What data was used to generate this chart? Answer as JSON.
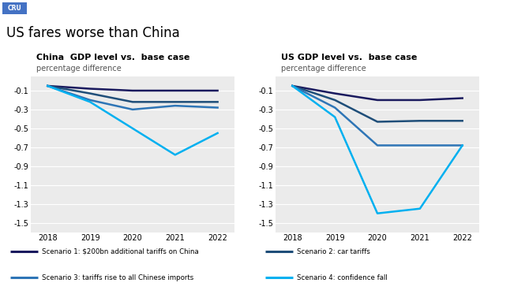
{
  "title": "US fares worse than China",
  "years": [
    2018,
    2019,
    2020,
    2021,
    2022
  ],
  "china_s1": [
    -0.05,
    -0.08,
    -0.1,
    -0.1,
    -0.1
  ],
  "china_s2": [
    -0.05,
    -0.13,
    -0.22,
    -0.22,
    -0.22
  ],
  "china_s3": [
    -0.05,
    -0.2,
    -0.3,
    -0.26,
    -0.28
  ],
  "china_s4": [
    -0.05,
    -0.22,
    -0.5,
    -0.78,
    -0.55
  ],
  "us_s1": [
    -0.05,
    -0.13,
    -0.2,
    -0.2,
    -0.18
  ],
  "us_s2": [
    -0.05,
    -0.2,
    -0.43,
    -0.42,
    -0.42
  ],
  "us_s3": [
    -0.05,
    -0.28,
    -0.68,
    -0.68,
    -0.68
  ],
  "us_s4": [
    -0.05,
    -0.38,
    -1.4,
    -1.35,
    -0.68
  ],
  "colors": {
    "s1": "#1a1a5e",
    "s2": "#1f4e79",
    "s3": "#2e75b6",
    "s4": "#00b0f0"
  },
  "china_title": "China  GDP level vs.  base case",
  "china_subtitle": "percentage difference",
  "us_title": "US GDP level vs.  base case",
  "us_subtitle": "percentage difference",
  "ylim": [
    -1.6,
    0.05
  ],
  "yticks": [
    -0.1,
    -0.3,
    -0.5,
    -0.7,
    -0.9,
    -1.1,
    -1.3,
    -1.5
  ],
  "legend_labels": [
    "Scenario 1: $200bn additional tariffs on China",
    "Scenario 2: car tariffs",
    "Scenario 3: tariffs rise to all Chinese imports",
    "Scenario 4: confidence fall"
  ],
  "header_bg": "#d4d4d4",
  "plot_bg": "#ebebeb",
  "cru_bg": "#4472c4",
  "linewidth": 1.8
}
